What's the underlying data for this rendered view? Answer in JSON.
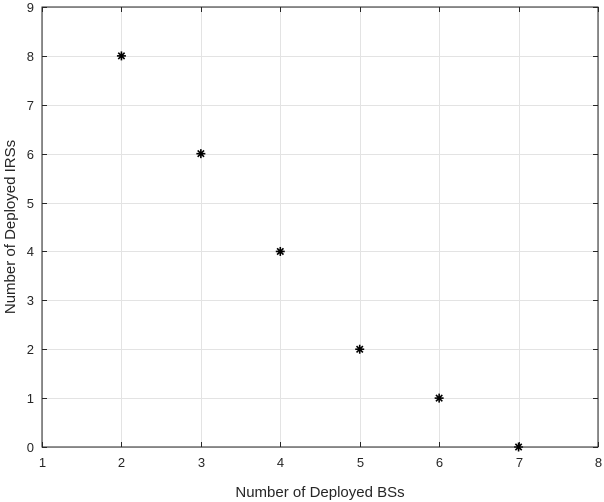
{
  "chart_data": {
    "type": "scatter",
    "title": "",
    "xlabel": "Number of Deployed BSs",
    "ylabel": "Number of Deployed IRSs",
    "xlim": [
      1,
      8
    ],
    "ylim": [
      0,
      9
    ],
    "xticks": [
      1,
      2,
      3,
      4,
      5,
      6,
      7,
      8
    ],
    "yticks": [
      0,
      1,
      2,
      3,
      4,
      5,
      6,
      7,
      8,
      9
    ],
    "grid": true,
    "marker": "asterisk",
    "marker_color": "#000000",
    "series": [
      {
        "x": [
          2,
          3,
          4,
          5,
          6,
          7
        ],
        "y": [
          8,
          6,
          4,
          2,
          1,
          0
        ]
      }
    ]
  }
}
